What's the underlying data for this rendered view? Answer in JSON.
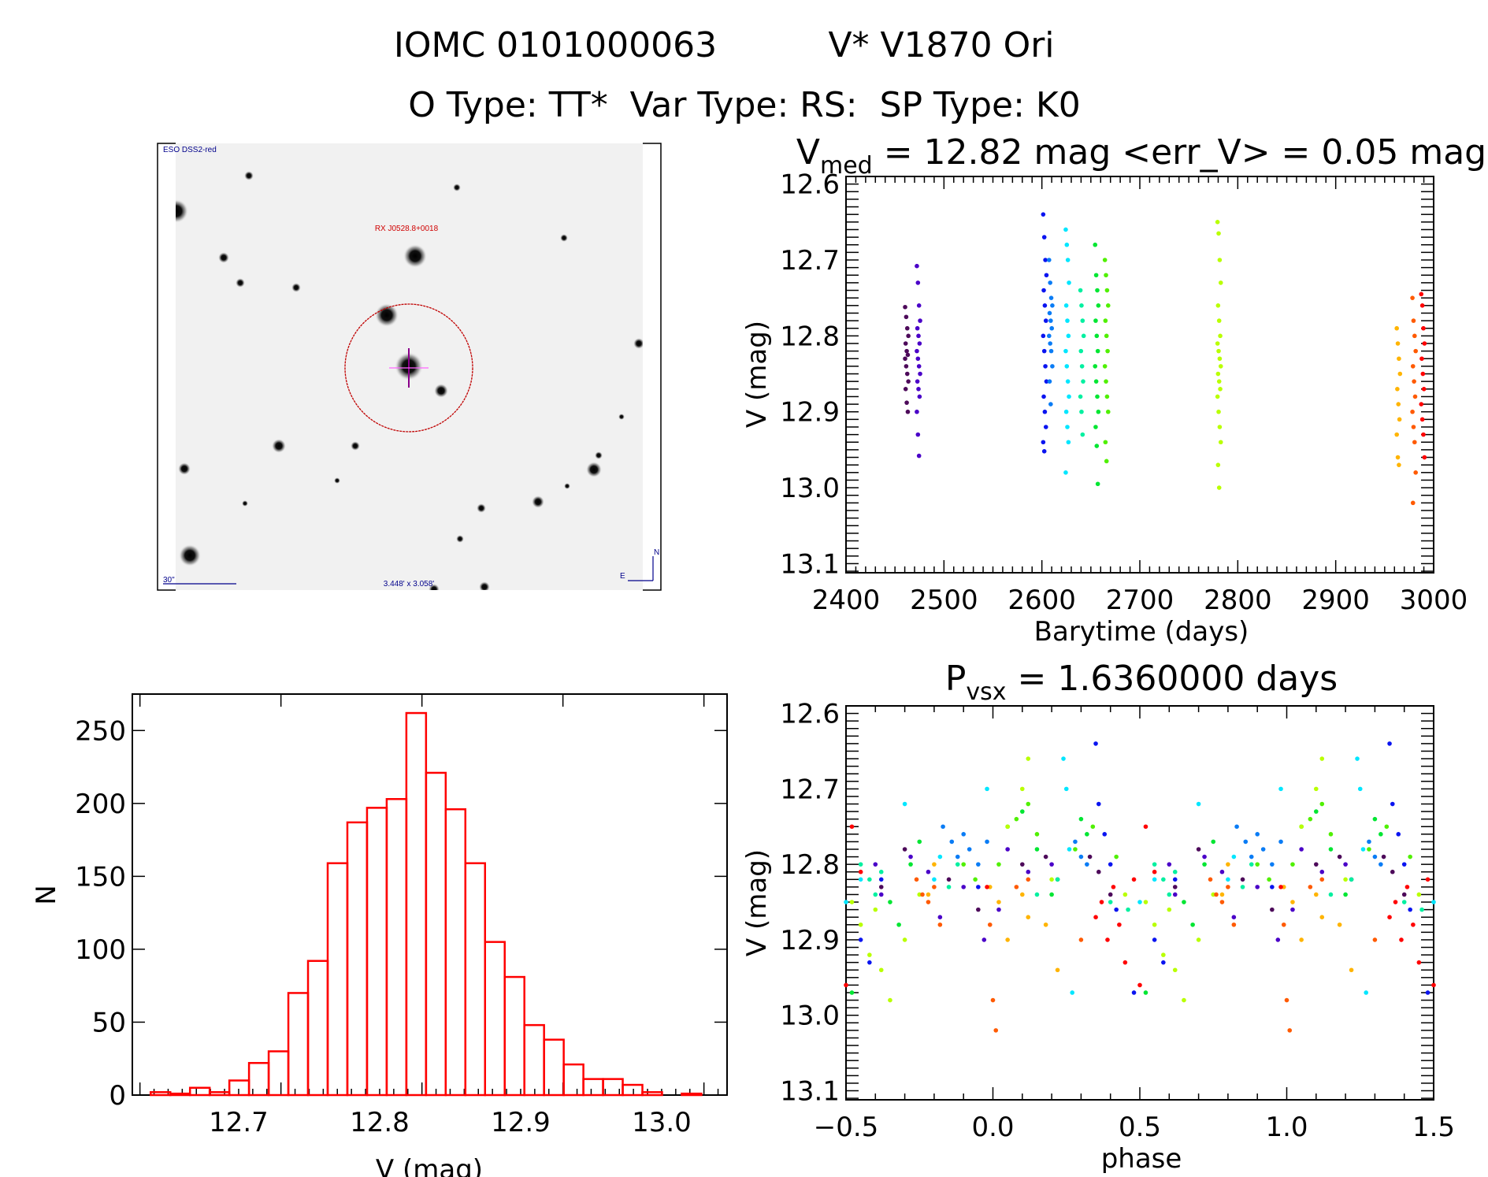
{
  "header": {
    "line1_left": "IOMC 0101000063",
    "line1_right": "V* V1870 Ori",
    "line2": "O Type: TT*  Var Type: RS:  SP Type: K0"
  },
  "image": {
    "survey": "ESO DSS2-red",
    "target_label": "RX J0528.8+0018",
    "scale_label": "30\"",
    "fov_label": "3.448' x 3.058'",
    "north": "N",
    "east": "E"
  },
  "chart_data": [
    {
      "id": "lightcurve",
      "type": "scatter",
      "title_main": "V",
      "title_sub": "med",
      "title_rest": " = 12.82 mag <err_V> = 0.05 mag",
      "xlabel": "Barytime (days)",
      "ylabel": "V (mag)",
      "xlim": [
        2400,
        3000
      ],
      "ylim": [
        12.59,
        13.112
      ],
      "y_inverted": true,
      "x_ticks": [
        "2400",
        "2500",
        "2600",
        "2700",
        "2800",
        "2900",
        "3000"
      ],
      "y_ticks": [
        "12.6",
        "12.7",
        "12.8",
        "12.9",
        "13.0",
        "13.1"
      ],
      "series": [
        {
          "color": "#4d0a5a",
          "t": 2462,
          "v": [
            12.762,
            12.775,
            12.79,
            12.8,
            12.81,
            12.82,
            12.825,
            12.83,
            12.84,
            12.85,
            12.86,
            12.87,
            12.888,
            12.9
          ]
        },
        {
          "color": "#4a00c8",
          "t": 2474,
          "v": [
            12.708,
            12.73,
            12.76,
            12.78,
            12.79,
            12.8,
            12.81,
            12.82,
            12.83,
            12.84,
            12.85,
            12.86,
            12.87,
            12.88,
            12.9,
            12.93,
            12.958
          ]
        },
        {
          "color": "#0a14f0",
          "t": 2603,
          "v": [
            12.64,
            12.67,
            12.7,
            12.72,
            12.74,
            12.76,
            12.78,
            12.8,
            12.82,
            12.84,
            12.86,
            12.88,
            12.9,
            12.92,
            12.94,
            12.952
          ]
        },
        {
          "color": "#0a7cf5",
          "t": 2609,
          "v": [
            12.7,
            12.73,
            12.75,
            12.76,
            12.77,
            12.78,
            12.79,
            12.8,
            12.81,
            12.82,
            12.84,
            12.86,
            12.89
          ]
        },
        {
          "color": "#00e6ff",
          "t": 2626,
          "v": [
            12.66,
            12.68,
            12.7,
            12.73,
            12.76,
            12.78,
            12.8,
            12.82,
            12.84,
            12.86,
            12.88,
            12.9,
            12.92,
            12.94,
            12.98
          ]
        },
        {
          "color": "#00f0a0",
          "t": 2641,
          "v": [
            12.74,
            12.76,
            12.78,
            12.8,
            12.82,
            12.84,
            12.86,
            12.88,
            12.9,
            12.93
          ]
        },
        {
          "color": "#00e632",
          "t": 2656,
          "v": [
            12.68,
            12.72,
            12.74,
            12.76,
            12.78,
            12.8,
            12.82,
            12.84,
            12.86,
            12.88,
            12.9,
            12.92,
            12.945,
            12.995
          ]
        },
        {
          "color": "#50f000",
          "t": 2666,
          "v": [
            12.7,
            12.72,
            12.74,
            12.76,
            12.78,
            12.8,
            12.82,
            12.84,
            12.86,
            12.88,
            12.9,
            12.94,
            12.965
          ]
        },
        {
          "color": "#b9ff00",
          "t": 2781,
          "v": [
            12.65,
            12.665,
            12.7,
            12.73,
            12.76,
            12.78,
            12.8,
            12.81,
            12.82,
            12.83,
            12.84,
            12.85,
            12.86,
            12.87,
            12.88,
            12.9,
            12.92,
            12.94,
            12.97,
            13.0
          ]
        },
        {
          "color": "#ffb400",
          "t": 2964,
          "v": [
            12.79,
            12.81,
            12.83,
            12.85,
            12.87,
            12.89,
            12.91,
            12.93,
            12.96,
            12.97
          ]
        },
        {
          "color": "#ff5a00",
          "t": 2980,
          "v": [
            12.75,
            12.78,
            12.8,
            12.82,
            12.84,
            12.86,
            12.88,
            12.9,
            12.92,
            12.94,
            12.98,
            13.02
          ]
        },
        {
          "color": "#ff0000",
          "t": 2989,
          "v": [
            12.745,
            12.76,
            12.79,
            12.81,
            12.83,
            12.85,
            12.87,
            12.89,
            12.91,
            12.93,
            12.96
          ]
        }
      ]
    },
    {
      "id": "phased",
      "type": "scatter",
      "title_main": "P",
      "title_sub": "vsx",
      "title_rest": " = 1.6360000 days",
      "xlabel": "phase",
      "ylabel": "V (mag)",
      "xlim": [
        -0.5,
        1.5
      ],
      "ylim": [
        12.59,
        13.112
      ],
      "y_inverted": true,
      "x_ticks": [
        "−0.5",
        "0.0",
        "0.5",
        "1.0",
        "1.5"
      ],
      "y_ticks": [
        "12.6",
        "12.7",
        "12.8",
        "12.9",
        "13.0",
        "13.1"
      ],
      "series": [
        {
          "color": "#4d0a5a",
          "points": [
            [
              0.1,
              12.8
            ],
            [
              0.18,
              12.79
            ],
            [
              0.22,
              12.82
            ],
            [
              0.33,
              12.79
            ],
            [
              0.36,
              12.81
            ],
            [
              0.4,
              12.84
            ],
            [
              0.62,
              12.83
            ],
            [
              0.7,
              12.78
            ],
            [
              0.85,
              12.82
            ],
            [
              0.95,
              12.86
            ]
          ]
        },
        {
          "color": "#4a00c8",
          "points": [
            [
              0.02,
              12.86
            ],
            [
              0.05,
              12.78
            ],
            [
              0.12,
              12.81
            ],
            [
              0.2,
              12.8
            ],
            [
              0.6,
              12.8
            ],
            [
              0.62,
              12.84
            ],
            [
              0.72,
              12.79
            ],
            [
              0.78,
              12.81
            ],
            [
              0.82,
              12.87
            ],
            [
              0.9,
              12.83
            ],
            [
              0.97,
              12.9
            ]
          ]
        },
        {
          "color": "#0a14f0",
          "points": [
            [
              0.35,
              12.64
            ],
            [
              0.36,
              12.72
            ],
            [
              0.38,
              12.76
            ],
            [
              0.4,
              12.8
            ],
            [
              0.42,
              12.86
            ],
            [
              0.55,
              12.9
            ],
            [
              0.58,
              12.93
            ],
            [
              0.62,
              12.82
            ],
            [
              0.95,
              12.83
            ],
            [
              0.48,
              12.97
            ]
          ]
        },
        {
          "color": "#0a7cf5",
          "points": [
            [
              0.83,
              12.75
            ],
            [
              0.86,
              12.77
            ],
            [
              0.88,
              12.79
            ],
            [
              0.9,
              12.76
            ],
            [
              0.92,
              12.78
            ],
            [
              0.95,
              12.8
            ],
            [
              0.98,
              12.77
            ],
            [
              0.28,
              12.77
            ],
            [
              0.3,
              12.79
            ],
            [
              0.32,
              12.8
            ]
          ]
        },
        {
          "color": "#00e6ff",
          "points": [
            [
              0.24,
              12.66
            ],
            [
              0.25,
              12.7
            ],
            [
              0.26,
              12.78
            ],
            [
              0.82,
              12.79
            ],
            [
              0.8,
              12.82
            ],
            [
              0.55,
              12.82
            ],
            [
              0.5,
              12.85
            ],
            [
              0.7,
              12.72
            ],
            [
              0.98,
              12.7
            ],
            [
              0.27,
              12.97
            ]
          ]
        },
        {
          "color": "#00f0a0",
          "points": [
            [
              0.55,
              12.8
            ],
            [
              0.58,
              12.82
            ],
            [
              0.6,
              12.84
            ],
            [
              0.62,
              12.81
            ],
            [
              0.85,
              12.83
            ],
            [
              0.88,
              12.8
            ],
            [
              0.46,
              12.86
            ],
            [
              0.22,
              12.82
            ],
            [
              0.15,
              12.84
            ],
            [
              0.4,
              12.85
            ]
          ]
        },
        {
          "color": "#00e632",
          "points": [
            [
              0.05,
              12.75
            ],
            [
              0.1,
              12.73
            ],
            [
              0.15,
              12.78
            ],
            [
              0.2,
              12.84
            ],
            [
              0.3,
              12.74
            ],
            [
              0.32,
              12.76
            ],
            [
              0.65,
              12.85
            ],
            [
              0.68,
              12.88
            ],
            [
              0.72,
              12.8
            ],
            [
              0.52,
              12.97
            ],
            [
              0.75,
              12.77
            ]
          ]
        },
        {
          "color": "#50f000",
          "points": [
            [
              0.08,
              12.74
            ],
            [
              0.12,
              12.72
            ],
            [
              0.15,
              12.76
            ],
            [
              0.28,
              12.78
            ],
            [
              0.34,
              12.75
            ],
            [
              0.42,
              12.79
            ],
            [
              0.9,
              12.8
            ],
            [
              0.94,
              12.82
            ],
            [
              0.02,
              12.8
            ]
          ]
        },
        {
          "color": "#b9ff00",
          "points": [
            [
              0.52,
              12.85
            ],
            [
              0.55,
              12.88
            ],
            [
              0.58,
              12.92
            ],
            [
              0.6,
              12.86
            ],
            [
              0.62,
              12.94
            ],
            [
              0.65,
              12.98
            ],
            [
              0.05,
              12.75
            ],
            [
              0.1,
              12.7
            ],
            [
              0.12,
              12.66
            ],
            [
              0.7,
              12.9
            ],
            [
              0.75,
              12.84
            ],
            [
              0.2,
              12.82
            ],
            [
              0.45,
              12.84
            ]
          ]
        },
        {
          "color": "#ffb400",
          "points": [
            [
              0.99,
              12.83
            ],
            [
              0.02,
              12.85
            ],
            [
              0.05,
              12.9
            ],
            [
              0.1,
              12.84
            ],
            [
              0.12,
              12.87
            ],
            [
              0.18,
              12.88
            ],
            [
              0.22,
              12.94
            ],
            [
              0.8,
              12.8
            ],
            [
              0.78,
              12.84
            ]
          ]
        },
        {
          "color": "#ff5a00",
          "points": [
            [
              0.74,
              12.82
            ],
            [
              0.76,
              12.84
            ],
            [
              0.78,
              12.85
            ],
            [
              0.8,
              12.83
            ],
            [
              0.82,
              12.88
            ],
            [
              0.99,
              12.88
            ],
            [
              0.0,
              12.98
            ],
            [
              0.01,
              13.02
            ],
            [
              0.08,
              12.83
            ],
            [
              0.12,
              12.82
            ],
            [
              0.3,
              12.9
            ]
          ]
        },
        {
          "color": "#ff0000",
          "points": [
            [
              0.35,
              12.87
            ],
            [
              0.37,
              12.85
            ],
            [
              0.39,
              12.9
            ],
            [
              0.41,
              12.83
            ],
            [
              0.43,
              12.88
            ],
            [
              0.45,
              12.93
            ],
            [
              0.48,
              12.82
            ],
            [
              0.5,
              12.96
            ],
            [
              0.55,
              12.81
            ],
            [
              0.52,
              12.75
            ],
            [
              0.98,
              12.83
            ]
          ]
        }
      ]
    },
    {
      "id": "histogram",
      "type": "bar",
      "xlabel": "V (mag)",
      "ylabel": "N",
      "xlim": [
        12.6246,
        13.0464
      ],
      "ylim": [
        0,
        275
      ],
      "x_ticks": [
        "12.7",
        "12.8",
        "12.9",
        "13.0"
      ],
      "y_ticks": [
        "0",
        "50",
        "100",
        "150",
        "200",
        "250"
      ],
      "bin_start": 12.6376,
      "bin_width": 0.01395,
      "counts": [
        2,
        1,
        5,
        2,
        10,
        22,
        30,
        70,
        92,
        159,
        187,
        197,
        203,
        262,
        221,
        196,
        159,
        105,
        81,
        48,
        38,
        21,
        11,
        11,
        7,
        2,
        0,
        1
      ],
      "bar_color": "#ff0000"
    }
  ]
}
